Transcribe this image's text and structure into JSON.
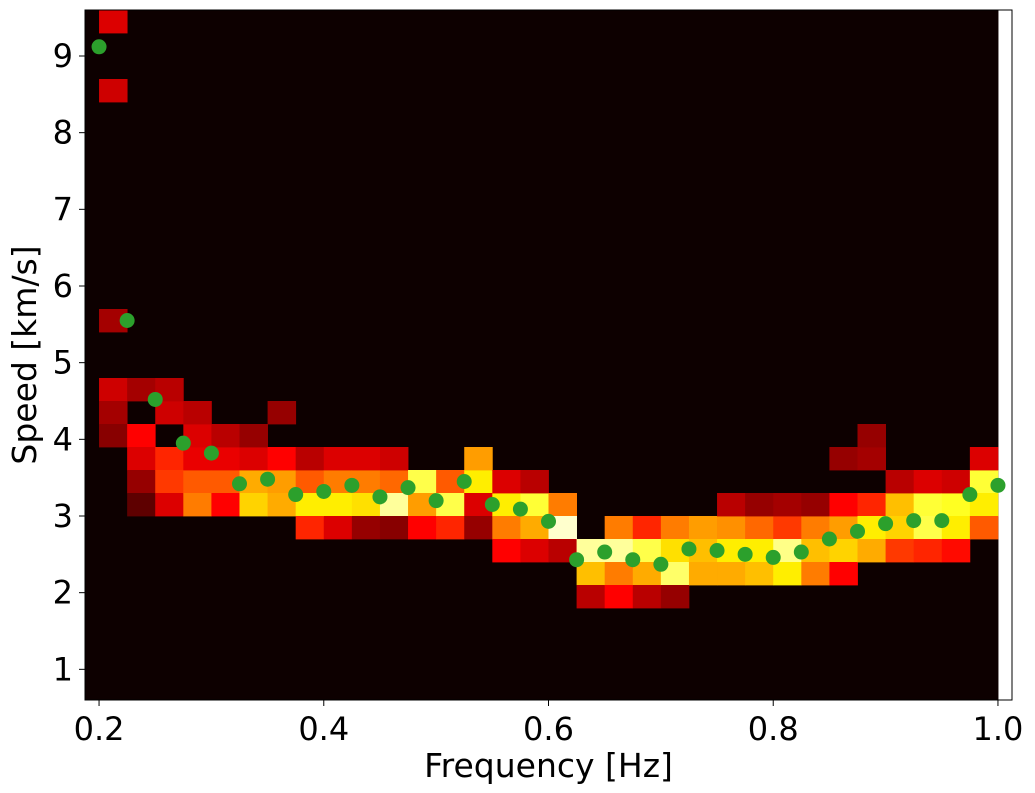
{
  "chart_data": {
    "type": "heatmap",
    "title": "",
    "xlabel": "Frequency [Hz]",
    "ylabel": "Speed [km/s]",
    "xlim": [
      0.1875,
      1.0125
    ],
    "ylim": [
      0.6,
      9.6
    ],
    "x_ticks": [
      0.2,
      0.4,
      0.6,
      0.8,
      1.0
    ],
    "x_tick_labels": [
      "0.2",
      "0.4",
      "0.6",
      "0.8",
      "1.0"
    ],
    "y_ticks": [
      1,
      2,
      3,
      4,
      5,
      6,
      7,
      8,
      9
    ],
    "y_tick_labels": [
      "1",
      "2",
      "3",
      "4",
      "5",
      "6",
      "7",
      "8",
      "9"
    ],
    "colormap": "hot",
    "background_color": "#0d0000",
    "marker_color": "#2ca02c",
    "grid": false,
    "heatmap": {
      "x_start": 0.1875,
      "x_step": 0.025,
      "y_start": 0.6,
      "y_step": 0.3,
      "cells": [
        [
          0.2125,
          9.45,
          0.3
        ],
        [
          0.2125,
          8.55,
          0.28
        ],
        [
          0.2125,
          5.55,
          0.22
        ],
        [
          0.2125,
          4.65,
          0.28
        ],
        [
          0.2125,
          4.35,
          0.22
        ],
        [
          0.2125,
          4.05,
          0.18
        ],
        [
          0.2375,
          4.65,
          0.22
        ],
        [
          0.2375,
          4.05,
          0.35
        ],
        [
          0.2375,
          3.75,
          0.3
        ],
        [
          0.2375,
          3.45,
          0.2
        ],
        [
          0.2375,
          3.15,
          0.12
        ],
        [
          0.2625,
          3.75,
          0.42
        ],
        [
          0.2625,
          3.45,
          0.45
        ],
        [
          0.2625,
          3.15,
          0.3
        ],
        [
          0.2625,
          4.35,
          0.28
        ],
        [
          0.2625,
          4.65,
          0.25
        ],
        [
          0.2875,
          3.45,
          0.5
        ],
        [
          0.2875,
          3.15,
          0.55
        ],
        [
          0.2875,
          3.75,
          0.32
        ],
        [
          0.2875,
          4.05,
          0.3
        ],
        [
          0.2875,
          4.35,
          0.25
        ],
        [
          0.3125,
          3.45,
          0.5
        ],
        [
          0.3125,
          3.15,
          0.35
        ],
        [
          0.3125,
          3.75,
          0.32
        ],
        [
          0.3125,
          4.05,
          0.25
        ],
        [
          0.3375,
          3.45,
          0.62
        ],
        [
          0.3375,
          3.15,
          0.68
        ],
        [
          0.3375,
          3.75,
          0.3
        ],
        [
          0.3375,
          4.05,
          0.2
        ],
        [
          0.3625,
          3.45,
          0.6
        ],
        [
          0.3625,
          3.15,
          0.62
        ],
        [
          0.3625,
          3.75,
          0.35
        ],
        [
          0.3625,
          4.35,
          0.2
        ],
        [
          0.3875,
          3.45,
          0.5
        ],
        [
          0.3875,
          3.15,
          0.72
        ],
        [
          0.3875,
          2.85,
          0.42
        ],
        [
          0.3875,
          3.75,
          0.25
        ],
        [
          0.4125,
          3.45,
          0.55
        ],
        [
          0.4125,
          3.15,
          0.72
        ],
        [
          0.4125,
          2.85,
          0.3
        ],
        [
          0.4125,
          3.75,
          0.3
        ],
        [
          0.4375,
          3.45,
          0.55
        ],
        [
          0.4375,
          3.15,
          0.7
        ],
        [
          0.4375,
          3.75,
          0.3
        ],
        [
          0.4375,
          2.85,
          0.2
        ],
        [
          0.4625,
          3.45,
          0.52
        ],
        [
          0.4625,
          3.15,
          0.9
        ],
        [
          0.4625,
          3.75,
          0.28
        ],
        [
          0.4625,
          2.85,
          0.18
        ],
        [
          0.4875,
          3.45,
          0.82
        ],
        [
          0.4875,
          3.15,
          0.6
        ],
        [
          0.4875,
          2.85,
          0.35
        ],
        [
          0.5125,
          3.45,
          0.5
        ],
        [
          0.5125,
          3.15,
          0.82
        ],
        [
          0.5125,
          2.85,
          0.42
        ],
        [
          0.5375,
          3.45,
          0.72
        ],
        [
          0.5375,
          3.75,
          0.6
        ],
        [
          0.5375,
          3.15,
          0.3
        ],
        [
          0.5375,
          2.85,
          0.2
        ],
        [
          0.5625,
          3.15,
          0.72
        ],
        [
          0.5625,
          2.85,
          0.55
        ],
        [
          0.5625,
          2.55,
          0.35
        ],
        [
          0.5625,
          3.45,
          0.3
        ],
        [
          0.5875,
          3.15,
          0.8
        ],
        [
          0.5875,
          2.85,
          0.62
        ],
        [
          0.5875,
          2.55,
          0.3
        ],
        [
          0.5875,
          3.45,
          0.25
        ],
        [
          0.6125,
          3.15,
          0.55
        ],
        [
          0.6125,
          2.85,
          0.95
        ],
        [
          0.6125,
          2.55,
          0.25
        ],
        [
          0.6375,
          2.55,
          0.9
        ],
        [
          0.6375,
          2.25,
          0.65
        ],
        [
          0.6375,
          1.95,
          0.25
        ],
        [
          0.6625,
          2.85,
          0.55
        ],
        [
          0.6625,
          2.55,
          0.9
        ],
        [
          0.6625,
          2.25,
          0.55
        ],
        [
          0.6625,
          1.95,
          0.35
        ],
        [
          0.6875,
          2.85,
          0.42
        ],
        [
          0.6875,
          2.55,
          0.82
        ],
        [
          0.6875,
          2.25,
          0.62
        ],
        [
          0.6875,
          1.95,
          0.25
        ],
        [
          0.7125,
          2.85,
          0.55
        ],
        [
          0.7125,
          2.55,
          0.7
        ],
        [
          0.7125,
          2.25,
          0.85
        ],
        [
          0.7125,
          1.95,
          0.2
        ],
        [
          0.7375,
          2.85,
          0.6
        ],
        [
          0.7375,
          2.55,
          0.65
        ],
        [
          0.7375,
          2.25,
          0.62
        ],
        [
          0.7625,
          2.85,
          0.58
        ],
        [
          0.7625,
          2.55,
          0.72
        ],
        [
          0.7625,
          2.25,
          0.62
        ],
        [
          0.7625,
          3.15,
          0.25
        ],
        [
          0.7875,
          2.85,
          0.52
        ],
        [
          0.7875,
          2.55,
          0.72
        ],
        [
          0.7875,
          2.25,
          0.65
        ],
        [
          0.7875,
          3.15,
          0.2
        ],
        [
          0.8125,
          2.85,
          0.45
        ],
        [
          0.8125,
          2.55,
          0.88
        ],
        [
          0.8125,
          2.25,
          0.72
        ],
        [
          0.8125,
          3.15,
          0.22
        ],
        [
          0.8375,
          2.85,
          0.55
        ],
        [
          0.8375,
          2.55,
          0.65
        ],
        [
          0.8375,
          2.25,
          0.55
        ],
        [
          0.8375,
          3.15,
          0.2
        ],
        [
          0.8625,
          2.85,
          0.6
        ],
        [
          0.8625,
          2.55,
          0.68
        ],
        [
          0.8625,
          2.25,
          0.35
        ],
        [
          0.8625,
          3.15,
          0.35
        ],
        [
          0.8625,
          3.75,
          0.2
        ],
        [
          0.8875,
          3.15,
          0.42
        ],
        [
          0.8875,
          2.85,
          0.72
        ],
        [
          0.8875,
          2.55,
          0.62
        ],
        [
          0.8875,
          3.75,
          0.22
        ],
        [
          0.8875,
          4.05,
          0.2
        ],
        [
          0.9125,
          3.15,
          0.65
        ],
        [
          0.9125,
          2.85,
          0.68
        ],
        [
          0.9125,
          2.55,
          0.45
        ],
        [
          0.9125,
          3.45,
          0.25
        ],
        [
          0.9375,
          3.15,
          0.8
        ],
        [
          0.9375,
          2.85,
          0.82
        ],
        [
          0.9375,
          2.55,
          0.42
        ],
        [
          0.9375,
          3.45,
          0.3
        ],
        [
          0.9625,
          3.15,
          0.78
        ],
        [
          0.9625,
          2.85,
          0.72
        ],
        [
          0.9625,
          2.55,
          0.38
        ],
        [
          0.9625,
          3.45,
          0.28
        ],
        [
          0.9875,
          3.45,
          0.8
        ],
        [
          0.9875,
          3.15,
          0.72
        ],
        [
          0.9875,
          2.85,
          0.5
        ],
        [
          0.9875,
          3.75,
          0.3
        ]
      ]
    },
    "series": [
      {
        "type": "scatter",
        "x": [
          0.2,
          0.225,
          0.25,
          0.275,
          0.3,
          0.325,
          0.35,
          0.375,
          0.4,
          0.425,
          0.45,
          0.475,
          0.5,
          0.525,
          0.55,
          0.575,
          0.6,
          0.625,
          0.65,
          0.675,
          0.7,
          0.725,
          0.75,
          0.775,
          0.8,
          0.825,
          0.85,
          0.875,
          0.9,
          0.925,
          0.95,
          0.975,
          1.0
        ],
        "y": [
          9.12,
          5.55,
          4.52,
          3.95,
          3.82,
          3.42,
          3.48,
          3.28,
          3.32,
          3.4,
          3.25,
          3.37,
          3.2,
          3.45,
          3.15,
          3.09,
          2.93,
          2.43,
          2.53,
          2.43,
          2.37,
          2.57,
          2.55,
          2.5,
          2.46,
          2.53,
          2.7,
          2.8,
          2.9,
          2.94,
          2.94,
          3.28,
          3.4
        ]
      }
    ]
  }
}
